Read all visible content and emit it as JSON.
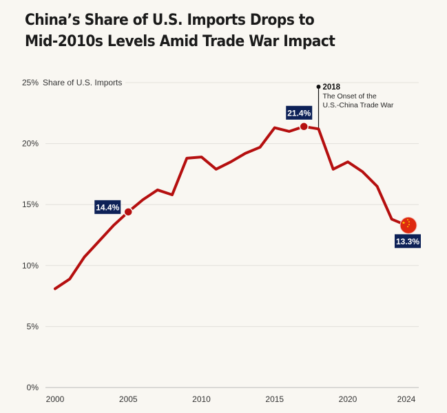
{
  "title_line1": "China’s Share of U.S. Imports Drops to",
  "title_line2": "Mid-2010s Levels Amid Trade War Impact",
  "chart_data": {
    "type": "line",
    "ylabel": "Share of U.S. Imports",
    "x": [
      2000,
      2001,
      2002,
      2003,
      2004,
      2005,
      2006,
      2007,
      2008,
      2009,
      2010,
      2011,
      2012,
      2013,
      2014,
      2015,
      2016,
      2017,
      2018,
      2019,
      2020,
      2021,
      2022,
      2023,
      2024
    ],
    "values": [
      8.1,
      8.9,
      10.7,
      12.0,
      13.3,
      14.4,
      15.4,
      16.2,
      15.8,
      18.8,
      18.9,
      17.9,
      18.5,
      19.2,
      19.7,
      21.3,
      21.0,
      21.4,
      21.2,
      17.9,
      18.5,
      17.7,
      16.5,
      13.8,
      13.3
    ],
    "xlim": [
      2000,
      2024
    ],
    "ylim": [
      0,
      25
    ],
    "x_ticks": [
      "2000",
      "2005",
      "2010",
      "2015",
      "2020",
      "2024"
    ],
    "y_ticks": [
      "0%",
      "5%",
      "10%",
      "15%",
      "20%",
      "25%"
    ],
    "grid": true,
    "line_color": "#b50f0f",
    "label_bg": "#0d2157",
    "annotations": [
      {
        "x": 2005,
        "y": 14.4,
        "text": "14.4%"
      },
      {
        "x": 2017,
        "y": 21.4,
        "text": "21.4%"
      },
      {
        "x": 2024,
        "y": 13.3,
        "text": "13.3%",
        "marker": "china-flag"
      }
    ],
    "event": {
      "x": 2018,
      "year": "2018",
      "line1": "The Onset of the",
      "line2": "U.S.-China Trade War"
    }
  }
}
